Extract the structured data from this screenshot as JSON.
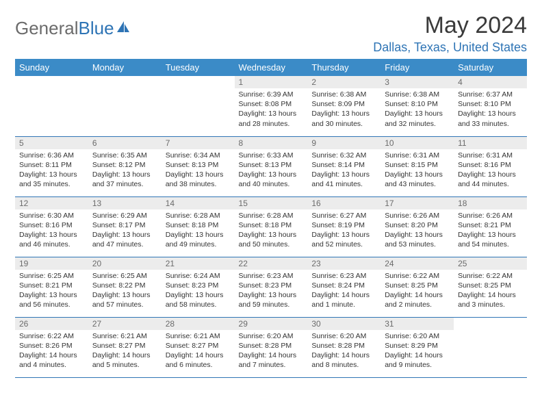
{
  "logo": {
    "part1": "General",
    "part2": "Blue"
  },
  "title": "May 2024",
  "location": "Dallas, Texas, United States",
  "header_bg": "#3b8bc7",
  "weekdays": [
    "Sunday",
    "Monday",
    "Tuesday",
    "Wednesday",
    "Thursday",
    "Friday",
    "Saturday"
  ],
  "weeks": [
    [
      null,
      null,
      null,
      {
        "n": "1",
        "sr": "Sunrise: 6:39 AM",
        "ss": "Sunset: 8:08 PM",
        "d1": "Daylight: 13 hours",
        "d2": "and 28 minutes."
      },
      {
        "n": "2",
        "sr": "Sunrise: 6:38 AM",
        "ss": "Sunset: 8:09 PM",
        "d1": "Daylight: 13 hours",
        "d2": "and 30 minutes."
      },
      {
        "n": "3",
        "sr": "Sunrise: 6:38 AM",
        "ss": "Sunset: 8:10 PM",
        "d1": "Daylight: 13 hours",
        "d2": "and 32 minutes."
      },
      {
        "n": "4",
        "sr": "Sunrise: 6:37 AM",
        "ss": "Sunset: 8:10 PM",
        "d1": "Daylight: 13 hours",
        "d2": "and 33 minutes."
      }
    ],
    [
      {
        "n": "5",
        "sr": "Sunrise: 6:36 AM",
        "ss": "Sunset: 8:11 PM",
        "d1": "Daylight: 13 hours",
        "d2": "and 35 minutes."
      },
      {
        "n": "6",
        "sr": "Sunrise: 6:35 AM",
        "ss": "Sunset: 8:12 PM",
        "d1": "Daylight: 13 hours",
        "d2": "and 37 minutes."
      },
      {
        "n": "7",
        "sr": "Sunrise: 6:34 AM",
        "ss": "Sunset: 8:13 PM",
        "d1": "Daylight: 13 hours",
        "d2": "and 38 minutes."
      },
      {
        "n": "8",
        "sr": "Sunrise: 6:33 AM",
        "ss": "Sunset: 8:13 PM",
        "d1": "Daylight: 13 hours",
        "d2": "and 40 minutes."
      },
      {
        "n": "9",
        "sr": "Sunrise: 6:32 AM",
        "ss": "Sunset: 8:14 PM",
        "d1": "Daylight: 13 hours",
        "d2": "and 41 minutes."
      },
      {
        "n": "10",
        "sr": "Sunrise: 6:31 AM",
        "ss": "Sunset: 8:15 PM",
        "d1": "Daylight: 13 hours",
        "d2": "and 43 minutes."
      },
      {
        "n": "11",
        "sr": "Sunrise: 6:31 AM",
        "ss": "Sunset: 8:16 PM",
        "d1": "Daylight: 13 hours",
        "d2": "and 44 minutes."
      }
    ],
    [
      {
        "n": "12",
        "sr": "Sunrise: 6:30 AM",
        "ss": "Sunset: 8:16 PM",
        "d1": "Daylight: 13 hours",
        "d2": "and 46 minutes."
      },
      {
        "n": "13",
        "sr": "Sunrise: 6:29 AM",
        "ss": "Sunset: 8:17 PM",
        "d1": "Daylight: 13 hours",
        "d2": "and 47 minutes."
      },
      {
        "n": "14",
        "sr": "Sunrise: 6:28 AM",
        "ss": "Sunset: 8:18 PM",
        "d1": "Daylight: 13 hours",
        "d2": "and 49 minutes."
      },
      {
        "n": "15",
        "sr": "Sunrise: 6:28 AM",
        "ss": "Sunset: 8:18 PM",
        "d1": "Daylight: 13 hours",
        "d2": "and 50 minutes."
      },
      {
        "n": "16",
        "sr": "Sunrise: 6:27 AM",
        "ss": "Sunset: 8:19 PM",
        "d1": "Daylight: 13 hours",
        "d2": "and 52 minutes."
      },
      {
        "n": "17",
        "sr": "Sunrise: 6:26 AM",
        "ss": "Sunset: 8:20 PM",
        "d1": "Daylight: 13 hours",
        "d2": "and 53 minutes."
      },
      {
        "n": "18",
        "sr": "Sunrise: 6:26 AM",
        "ss": "Sunset: 8:21 PM",
        "d1": "Daylight: 13 hours",
        "d2": "and 54 minutes."
      }
    ],
    [
      {
        "n": "19",
        "sr": "Sunrise: 6:25 AM",
        "ss": "Sunset: 8:21 PM",
        "d1": "Daylight: 13 hours",
        "d2": "and 56 minutes."
      },
      {
        "n": "20",
        "sr": "Sunrise: 6:25 AM",
        "ss": "Sunset: 8:22 PM",
        "d1": "Daylight: 13 hours",
        "d2": "and 57 minutes."
      },
      {
        "n": "21",
        "sr": "Sunrise: 6:24 AM",
        "ss": "Sunset: 8:23 PM",
        "d1": "Daylight: 13 hours",
        "d2": "and 58 minutes."
      },
      {
        "n": "22",
        "sr": "Sunrise: 6:23 AM",
        "ss": "Sunset: 8:23 PM",
        "d1": "Daylight: 13 hours",
        "d2": "and 59 minutes."
      },
      {
        "n": "23",
        "sr": "Sunrise: 6:23 AM",
        "ss": "Sunset: 8:24 PM",
        "d1": "Daylight: 14 hours",
        "d2": "and 1 minute."
      },
      {
        "n": "24",
        "sr": "Sunrise: 6:22 AM",
        "ss": "Sunset: 8:25 PM",
        "d1": "Daylight: 14 hours",
        "d2": "and 2 minutes."
      },
      {
        "n": "25",
        "sr": "Sunrise: 6:22 AM",
        "ss": "Sunset: 8:25 PM",
        "d1": "Daylight: 14 hours",
        "d2": "and 3 minutes."
      }
    ],
    [
      {
        "n": "26",
        "sr": "Sunrise: 6:22 AM",
        "ss": "Sunset: 8:26 PM",
        "d1": "Daylight: 14 hours",
        "d2": "and 4 minutes."
      },
      {
        "n": "27",
        "sr": "Sunrise: 6:21 AM",
        "ss": "Sunset: 8:27 PM",
        "d1": "Daylight: 14 hours",
        "d2": "and 5 minutes."
      },
      {
        "n": "28",
        "sr": "Sunrise: 6:21 AM",
        "ss": "Sunset: 8:27 PM",
        "d1": "Daylight: 14 hours",
        "d2": "and 6 minutes."
      },
      {
        "n": "29",
        "sr": "Sunrise: 6:20 AM",
        "ss": "Sunset: 8:28 PM",
        "d1": "Daylight: 14 hours",
        "d2": "and 7 minutes."
      },
      {
        "n": "30",
        "sr": "Sunrise: 6:20 AM",
        "ss": "Sunset: 8:28 PM",
        "d1": "Daylight: 14 hours",
        "d2": "and 8 minutes."
      },
      {
        "n": "31",
        "sr": "Sunrise: 6:20 AM",
        "ss": "Sunset: 8:29 PM",
        "d1": "Daylight: 14 hours",
        "d2": "and 9 minutes."
      },
      null
    ]
  ]
}
